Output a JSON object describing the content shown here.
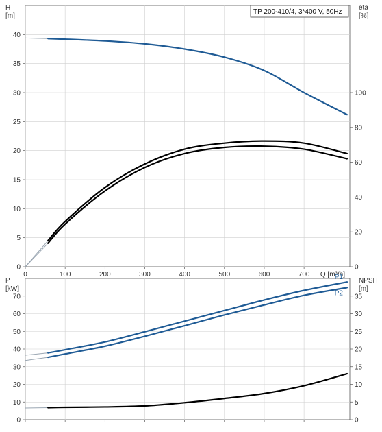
{
  "chart_data": [
    {
      "type": "line",
      "title": "TP 200-410/4, 3*400 V, 50Hz",
      "xlabel": "Q [m³/h]",
      "ylabel": "H\n[m]",
      "y2label": "eta\n[%]",
      "xlim": [
        0,
        815
      ],
      "ylim": [
        0,
        45
      ],
      "y2lim": [
        0,
        150
      ],
      "x_ticks": [
        0,
        100,
        200,
        300,
        400,
        500,
        600,
        700
      ],
      "y_ticks": [
        0,
        5,
        10,
        15,
        20,
        25,
        30,
        35,
        40
      ],
      "y2_ticks": [
        0,
        20,
        40,
        60,
        80,
        100
      ],
      "grid": true,
      "series": [
        {
          "id": "H",
          "axis": "left",
          "color": "#1f5b95",
          "x": [
            0,
            57,
            100,
            200,
            300,
            400,
            500,
            600,
            700,
            808
          ],
          "y": [
            39.4,
            39.3,
            39.2,
            38.9,
            38.4,
            37.5,
            36.1,
            33.8,
            30.0,
            26.2
          ]
        },
        {
          "id": "eta-upper",
          "axis": "right",
          "color": "#000000",
          "x": [
            0,
            57,
            100,
            200,
            300,
            400,
            500,
            600,
            700,
            808
          ],
          "y": [
            0,
            15.0,
            26.0,
            45.5,
            59.0,
            67.5,
            71.0,
            72.2,
            71.0,
            65.0
          ]
        },
        {
          "id": "eta-lower",
          "axis": "right",
          "color": "#000000",
          "x": [
            0,
            57,
            100,
            200,
            300,
            400,
            500,
            600,
            700,
            808
          ],
          "y": [
            0,
            13.5,
            24.5,
            43.5,
            57.0,
            65.0,
            68.5,
            69.2,
            67.5,
            62.0
          ]
        }
      ]
    },
    {
      "type": "line",
      "xlabel": "",
      "ylabel": "P\n[kW]",
      "y2label": "NPSH\n[m]",
      "xlim": [
        0,
        815
      ],
      "ylim": [
        0,
        80
      ],
      "y2lim": [
        0,
        40
      ],
      "y_ticks": [
        0,
        10,
        20,
        30,
        40,
        50,
        60,
        70
      ],
      "y2_ticks": [
        0,
        5,
        10,
        15,
        20,
        25,
        30,
        35
      ],
      "grid": true,
      "series": [
        {
          "name": "P1",
          "axis": "left",
          "color": "#1f5b95",
          "x": [
            0,
            57,
            100,
            200,
            300,
            400,
            500,
            600,
            700,
            808
          ],
          "y": [
            36.5,
            37.8,
            39.6,
            44.0,
            49.8,
            55.8,
            61.8,
            67.8,
            73.2,
            78.0
          ]
        },
        {
          "name": "P2",
          "axis": "left",
          "color": "#1f5b95",
          "x": [
            0,
            57,
            100,
            200,
            300,
            400,
            500,
            600,
            700,
            808
          ],
          "y": [
            33.5,
            35.3,
            37.2,
            41.6,
            47.2,
            53.2,
            59.3,
            65.0,
            70.4,
            74.8
          ]
        },
        {
          "id": "NPSH",
          "axis": "right",
          "color": "#000000",
          "x": [
            0,
            57,
            100,
            200,
            300,
            400,
            500,
            600,
            700,
            808
          ],
          "y": [
            3.3,
            3.4,
            3.5,
            3.6,
            3.9,
            4.8,
            6.0,
            7.4,
            9.6,
            13.0
          ]
        }
      ]
    }
  ]
}
